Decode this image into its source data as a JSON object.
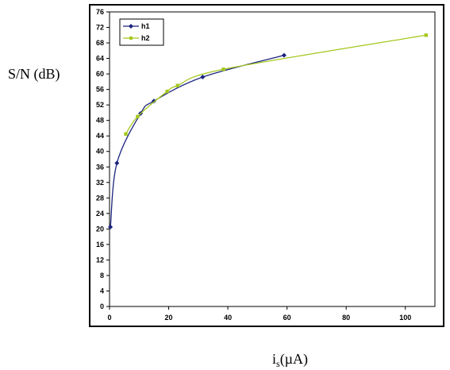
{
  "chart_data": {
    "type": "line",
    "title": "",
    "ylabel": "S/N (dB)",
    "xlabel_main": "i",
    "xlabel_sub": "s",
    "xlabel_unit": "(µA)",
    "xlim": [
      0,
      110
    ],
    "ylim": [
      0,
      76
    ],
    "xticks": [
      0,
      20,
      40,
      60,
      80,
      100
    ],
    "yticks": [
      0,
      4,
      8,
      12,
      16,
      20,
      24,
      28,
      32,
      36,
      40,
      44,
      48,
      52,
      56,
      60,
      64,
      68,
      72,
      76
    ],
    "grid": false,
    "legend_position": "top-left",
    "series": [
      {
        "name": "h1",
        "color": "#1a237e",
        "marker": "diamond",
        "x": [
          0.3,
          2.5,
          10.5,
          15,
          31.5,
          59
        ],
        "y": [
          20.5,
          37,
          49.8,
          53,
          59.2,
          64.8
        ]
      },
      {
        "name": "h2",
        "color": "#a5c81e",
        "marker": "square",
        "x": [
          5.5,
          9.5,
          19.5,
          23,
          38.5,
          107
        ],
        "y": [
          44.5,
          49,
          55.5,
          57,
          61.2,
          70
        ]
      }
    ]
  }
}
